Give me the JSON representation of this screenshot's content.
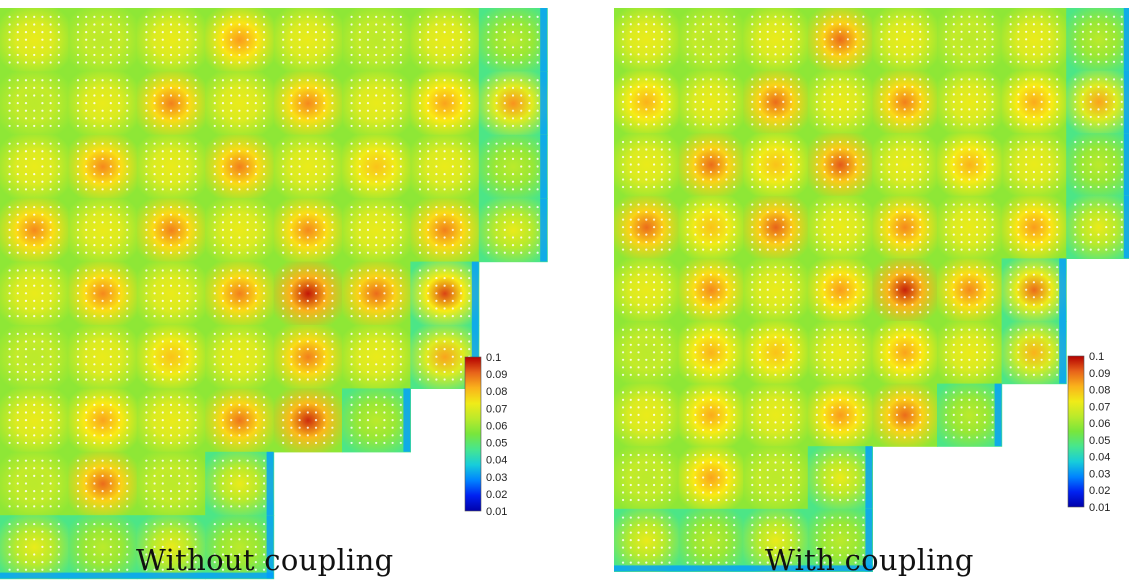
{
  "panels": [
    {
      "id": "left",
      "caption": "Without coupling"
    },
    {
      "id": "right",
      "caption": "With coupling"
    }
  ],
  "chart_data": [
    {
      "type": "heatmap",
      "caption": "Without coupling",
      "colorbar": {
        "min": 0.01,
        "max": 0.1,
        "ticks": [
          "0.1",
          "0.09",
          "0.08",
          "0.07",
          "0.06",
          "0.05",
          "0.04",
          "0.03",
          "0.02",
          "0.01"
        ]
      },
      "grid": {
        "rows": 9,
        "cols": 8
      },
      "row_lengths": [
        8,
        8,
        8,
        8,
        7,
        7,
        6,
        4,
        4
      ],
      "hot_assemblies": [
        {
          "r": 0,
          "c": 3,
          "v": 0.085
        },
        {
          "r": 1,
          "c": 2,
          "v": 0.088
        },
        {
          "r": 1,
          "c": 4,
          "v": 0.087
        },
        {
          "r": 1,
          "c": 6,
          "v": 0.084
        },
        {
          "r": 1,
          "c": 7,
          "v": 0.086
        },
        {
          "r": 2,
          "c": 1,
          "v": 0.087
        },
        {
          "r": 2,
          "c": 3,
          "v": 0.088
        },
        {
          "r": 2,
          "c": 5,
          "v": 0.08
        },
        {
          "r": 3,
          "c": 0,
          "v": 0.087
        },
        {
          "r": 3,
          "c": 2,
          "v": 0.088
        },
        {
          "r": 3,
          "c": 4,
          "v": 0.087
        },
        {
          "r": 3,
          "c": 6,
          "v": 0.088
        },
        {
          "r": 4,
          "c": 1,
          "v": 0.087
        },
        {
          "r": 4,
          "c": 3,
          "v": 0.088
        },
        {
          "r": 4,
          "c": 4,
          "v": 0.098
        },
        {
          "r": 4,
          "c": 5,
          "v": 0.09
        },
        {
          "r": 4,
          "c": 6,
          "v": 0.094
        },
        {
          "r": 5,
          "c": 2,
          "v": 0.08
        },
        {
          "r": 5,
          "c": 4,
          "v": 0.088
        },
        {
          "r": 5,
          "c": 6,
          "v": 0.084
        },
        {
          "r": 6,
          "c": 1,
          "v": 0.084
        },
        {
          "r": 6,
          "c": 3,
          "v": 0.089
        },
        {
          "r": 6,
          "c": 4,
          "v": 0.096
        },
        {
          "r": 7,
          "c": 1,
          "v": 0.09
        }
      ]
    },
    {
      "type": "heatmap",
      "caption": "With coupling",
      "colorbar": {
        "min": 0.01,
        "max": 0.1,
        "ticks": [
          "0.1",
          "0.09",
          "0.08",
          "0.07",
          "0.06",
          "0.05",
          "0.04",
          "0.03",
          "0.02",
          "0.01"
        ]
      },
      "grid": {
        "rows": 9,
        "cols": 8
      },
      "row_lengths": [
        8,
        8,
        8,
        8,
        7,
        7,
        6,
        4,
        4
      ],
      "hot_assemblies": [
        {
          "r": 0,
          "c": 3,
          "v": 0.09
        },
        {
          "r": 1,
          "c": 0,
          "v": 0.082
        },
        {
          "r": 1,
          "c": 2,
          "v": 0.09
        },
        {
          "r": 1,
          "c": 4,
          "v": 0.088
        },
        {
          "r": 1,
          "c": 6,
          "v": 0.083
        },
        {
          "r": 1,
          "c": 7,
          "v": 0.084
        },
        {
          "r": 2,
          "c": 1,
          "v": 0.09
        },
        {
          "r": 2,
          "c": 2,
          "v": 0.08
        },
        {
          "r": 2,
          "c": 3,
          "v": 0.092
        },
        {
          "r": 2,
          "c": 5,
          "v": 0.082
        },
        {
          "r": 3,
          "c": 0,
          "v": 0.09
        },
        {
          "r": 3,
          "c": 1,
          "v": 0.08
        },
        {
          "r": 3,
          "c": 2,
          "v": 0.091
        },
        {
          "r": 3,
          "c": 4,
          "v": 0.087
        },
        {
          "r": 3,
          "c": 6,
          "v": 0.085
        },
        {
          "r": 4,
          "c": 1,
          "v": 0.087
        },
        {
          "r": 4,
          "c": 3,
          "v": 0.085
        },
        {
          "r": 4,
          "c": 4,
          "v": 0.097
        },
        {
          "r": 4,
          "c": 5,
          "v": 0.087
        },
        {
          "r": 4,
          "c": 6,
          "v": 0.09
        },
        {
          "r": 5,
          "c": 1,
          "v": 0.082
        },
        {
          "r": 5,
          "c": 2,
          "v": 0.08
        },
        {
          "r": 5,
          "c": 4,
          "v": 0.084
        },
        {
          "r": 5,
          "c": 6,
          "v": 0.082
        },
        {
          "r": 6,
          "c": 1,
          "v": 0.083
        },
        {
          "r": 6,
          "c": 3,
          "v": 0.085
        },
        {
          "r": 6,
          "c": 4,
          "v": 0.09
        },
        {
          "r": 7,
          "c": 1,
          "v": 0.084
        }
      ]
    }
  ]
}
